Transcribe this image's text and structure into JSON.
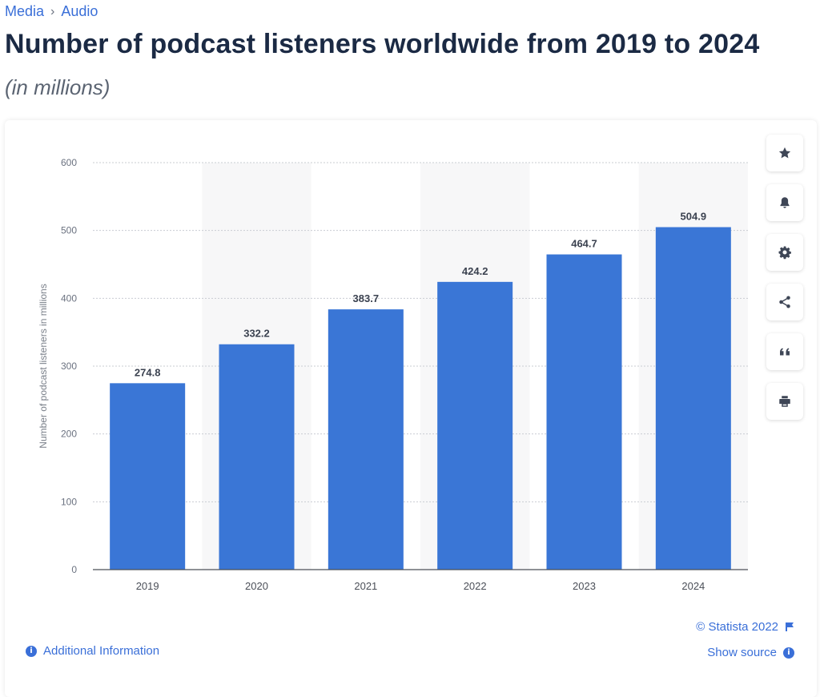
{
  "breadcrumb": {
    "items": [
      "Media",
      "Audio"
    ],
    "separator": "›"
  },
  "header": {
    "title": "Number of podcast listeners worldwide from 2019 to 2024",
    "subtitle": "(in millions)"
  },
  "chart_data": {
    "type": "bar",
    "categories": [
      "2019",
      "2020",
      "2021",
      "2022",
      "2023",
      "2024"
    ],
    "values": [
      274.8,
      332.2,
      383.7,
      424.2,
      464.7,
      504.9
    ],
    "value_labels": [
      "274.8",
      "332.2",
      "383.7",
      "424.2",
      "464.7",
      "504.9"
    ],
    "ylabel": "Number of podcast listeners in millions",
    "xlabel": "",
    "ylim": [
      0,
      600
    ],
    "yticks": [
      "0",
      "100",
      "200",
      "300",
      "400",
      "500",
      "600"
    ],
    "grid": true,
    "bar_color": "#3a76d6",
    "alt_band_color": "#f7f7f8"
  },
  "toolbar": {
    "icons": [
      "star-icon",
      "bell-icon",
      "gear-icon",
      "share-icon",
      "quote-icon",
      "print-icon"
    ]
  },
  "footer": {
    "copyright": "© Statista 2022",
    "show_source": "Show source",
    "additional_info": "Additional Information"
  },
  "colors": {
    "link": "#3a6fd8",
    "title": "#1b2a44"
  }
}
